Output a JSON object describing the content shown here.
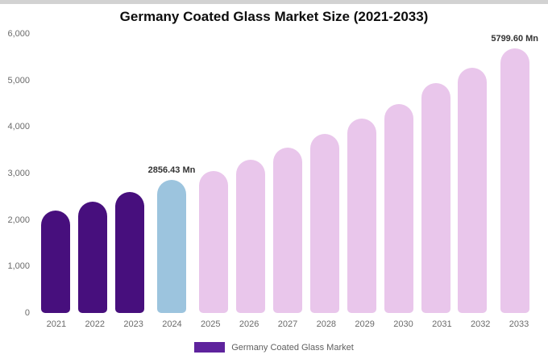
{
  "chart_data": {
    "type": "bar",
    "title": "Germany Coated Glass Market Size (2021-2033)",
    "categories": [
      "2021",
      "2022",
      "2023",
      "2024",
      "2025",
      "2026",
      "2027",
      "2028",
      "2029",
      "2030",
      "2031",
      "2032",
      "2033"
    ],
    "values": [
      2200,
      2400,
      2600,
      2856.43,
      3050,
      3300,
      3550,
      3850,
      4180,
      4500,
      4940,
      5280,
      5799.6
    ],
    "unit": "Mn",
    "ylim": [
      0,
      6000
    ],
    "yticks": [
      0,
      1000,
      2000,
      3000,
      4000,
      5000,
      6000
    ],
    "ytick_labels": [
      "0",
      "1,000",
      "2,000",
      "3,000",
      "4,000",
      "5,000",
      "6,000"
    ],
    "bar_colors": [
      "#470f7d",
      "#470f7d",
      "#470f7d",
      "#9cc4de",
      "#e9c6eb",
      "#e9c6eb",
      "#e9c6eb",
      "#e9c6eb",
      "#e9c6eb",
      "#e9c6eb",
      "#e9c6eb",
      "#e9c6eb",
      "#e9c6eb"
    ],
    "annotations": [
      {
        "index": 3,
        "text": "2856.43 Mn"
      },
      {
        "index": 12,
        "text": "5799.60 Mn"
      }
    ],
    "legend": [
      {
        "label": "Germany Coated Glass Market",
        "color": "#5e239d"
      }
    ],
    "grid": false,
    "legend_position": "bottom",
    "xlabel": "",
    "ylabel": ""
  }
}
